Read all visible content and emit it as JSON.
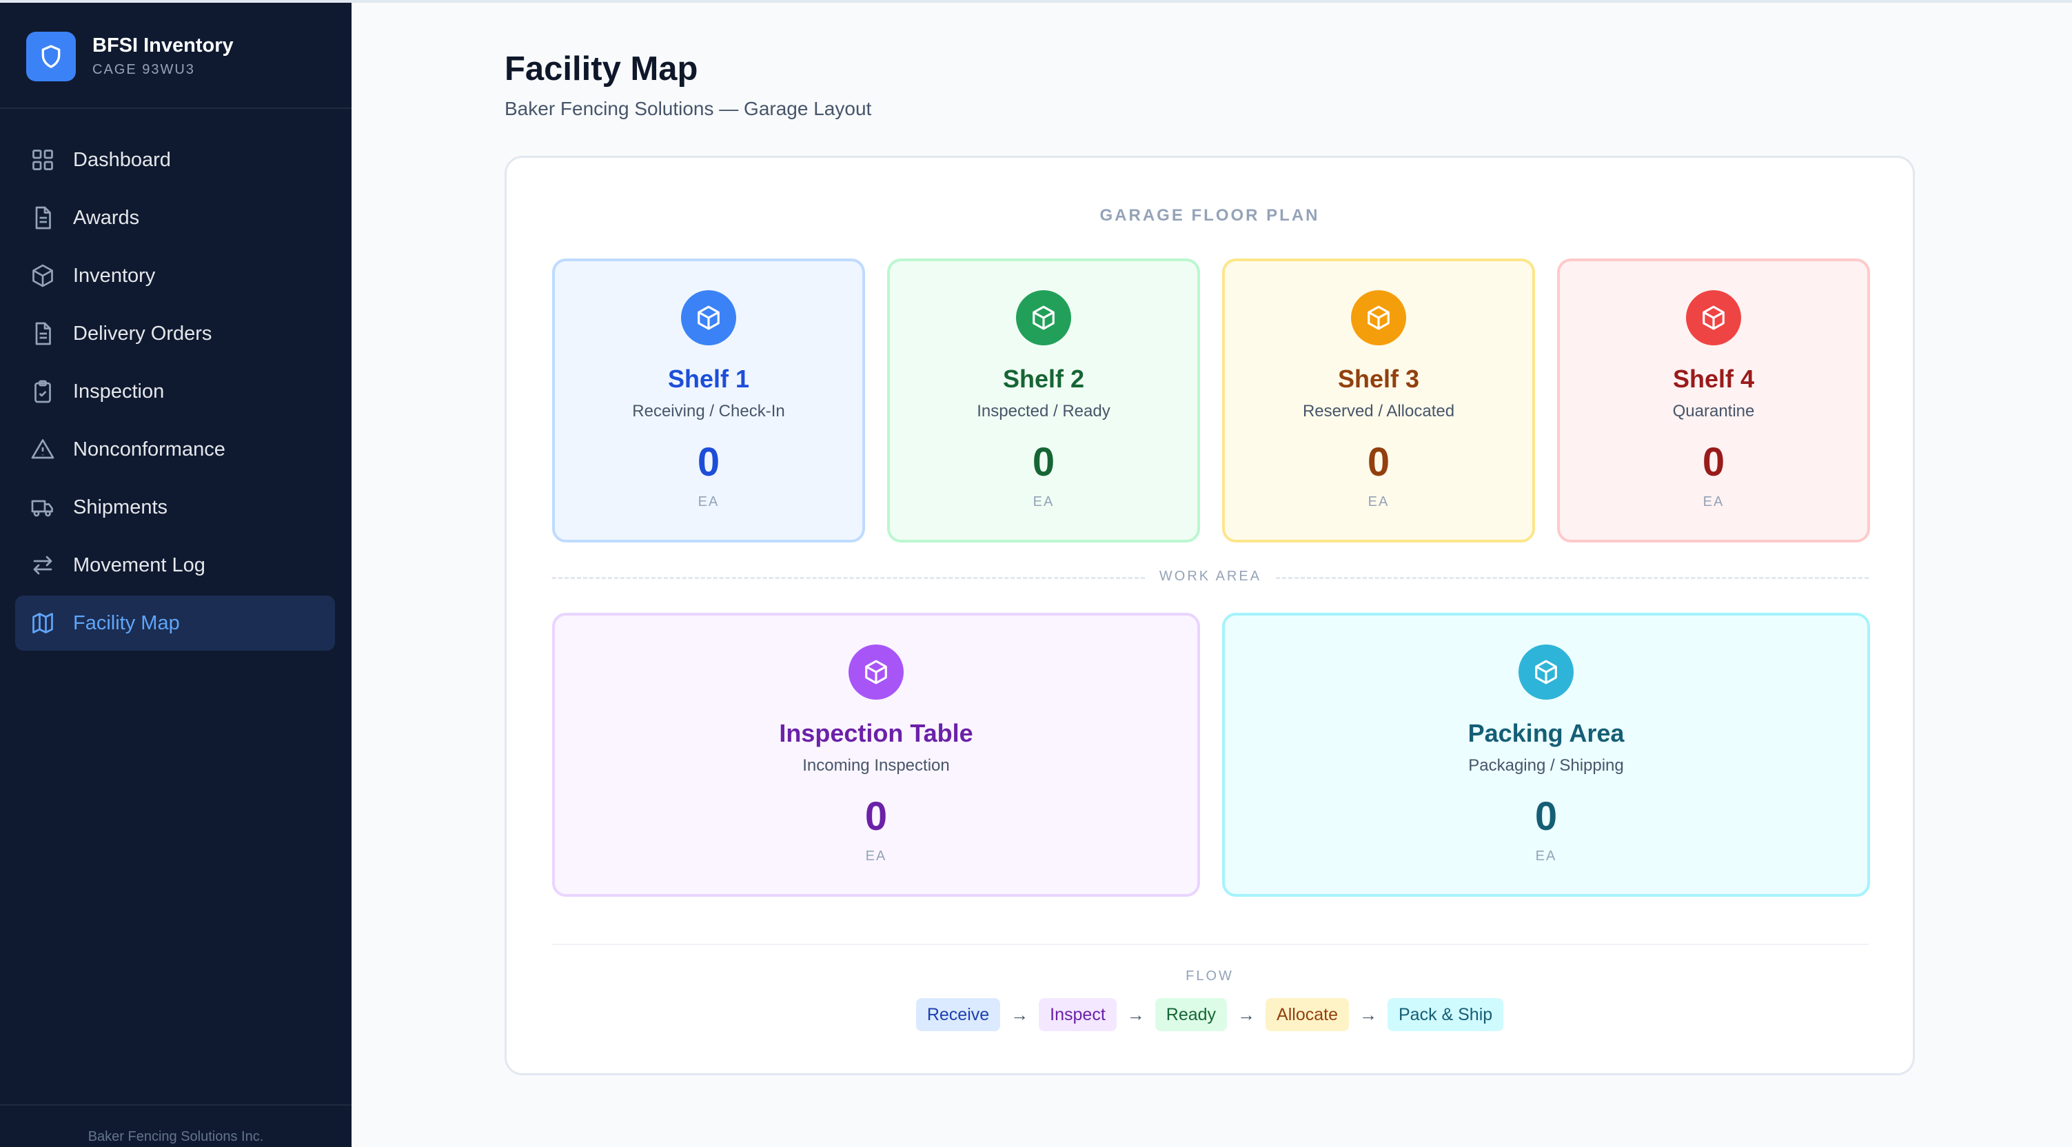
{
  "brand": {
    "name": "BFSI Inventory",
    "subtitle": "CAGE 93WU3",
    "logo_icon": "shield-icon",
    "accent": "#3b82f6"
  },
  "sidebar": {
    "items": [
      {
        "label": "Dashboard",
        "icon": "dashboard-grid-icon",
        "active": false
      },
      {
        "label": "Awards",
        "icon": "document-icon",
        "active": false
      },
      {
        "label": "Inventory",
        "icon": "box-icon",
        "active": false
      },
      {
        "label": "Delivery Orders",
        "icon": "document-icon",
        "active": false
      },
      {
        "label": "Inspection",
        "icon": "clipboard-check-icon",
        "active": false
      },
      {
        "label": "Nonconformance",
        "icon": "warning-triangle-icon",
        "active": false
      },
      {
        "label": "Shipments",
        "icon": "truck-icon",
        "active": false
      },
      {
        "label": "Movement Log",
        "icon": "arrows-swap-icon",
        "active": false
      },
      {
        "label": "Facility Map",
        "icon": "map-icon",
        "active": true
      }
    ],
    "footer": "Baker Fencing Solutions Inc."
  },
  "page": {
    "title": "Facility Map",
    "subtitle": "Baker Fencing Solutions — Garage Layout"
  },
  "floor_plan": {
    "heading": "GARAGE FLOOR PLAN",
    "shelves": [
      {
        "title": "Shelf 1",
        "subtitle": "Receiving / Check-In",
        "count": "0",
        "unit": "EA",
        "color": "#1d4ed8",
        "icon_bg": "#3b82f6"
      },
      {
        "title": "Shelf 2",
        "subtitle": "Inspected / Ready",
        "count": "0",
        "unit": "EA",
        "color": "#166534",
        "icon_bg": "#22a05a"
      },
      {
        "title": "Shelf 3",
        "subtitle": "Reserved / Allocated",
        "count": "0",
        "unit": "EA",
        "color": "#92400e",
        "icon_bg": "#f59e0b"
      },
      {
        "title": "Shelf 4",
        "subtitle": "Quarantine",
        "count": "0",
        "unit": "EA",
        "color": "#991b1b",
        "icon_bg": "#ef4444"
      }
    ],
    "work_area_label": "WORK AREA",
    "work_areas": [
      {
        "title": "Inspection Table",
        "subtitle": "Incoming Inspection",
        "count": "0",
        "unit": "EA",
        "color": "#6b21a8",
        "icon_bg": "#a855f7"
      },
      {
        "title": "Packing Area",
        "subtitle": "Packaging / Shipping",
        "count": "0",
        "unit": "EA",
        "color": "#155e75",
        "icon_bg": "#2eb4d8"
      }
    ],
    "flow_label": "FLOW",
    "flow_steps": [
      "Receive",
      "Inspect",
      "Ready",
      "Allocate",
      "Pack & Ship"
    ]
  }
}
